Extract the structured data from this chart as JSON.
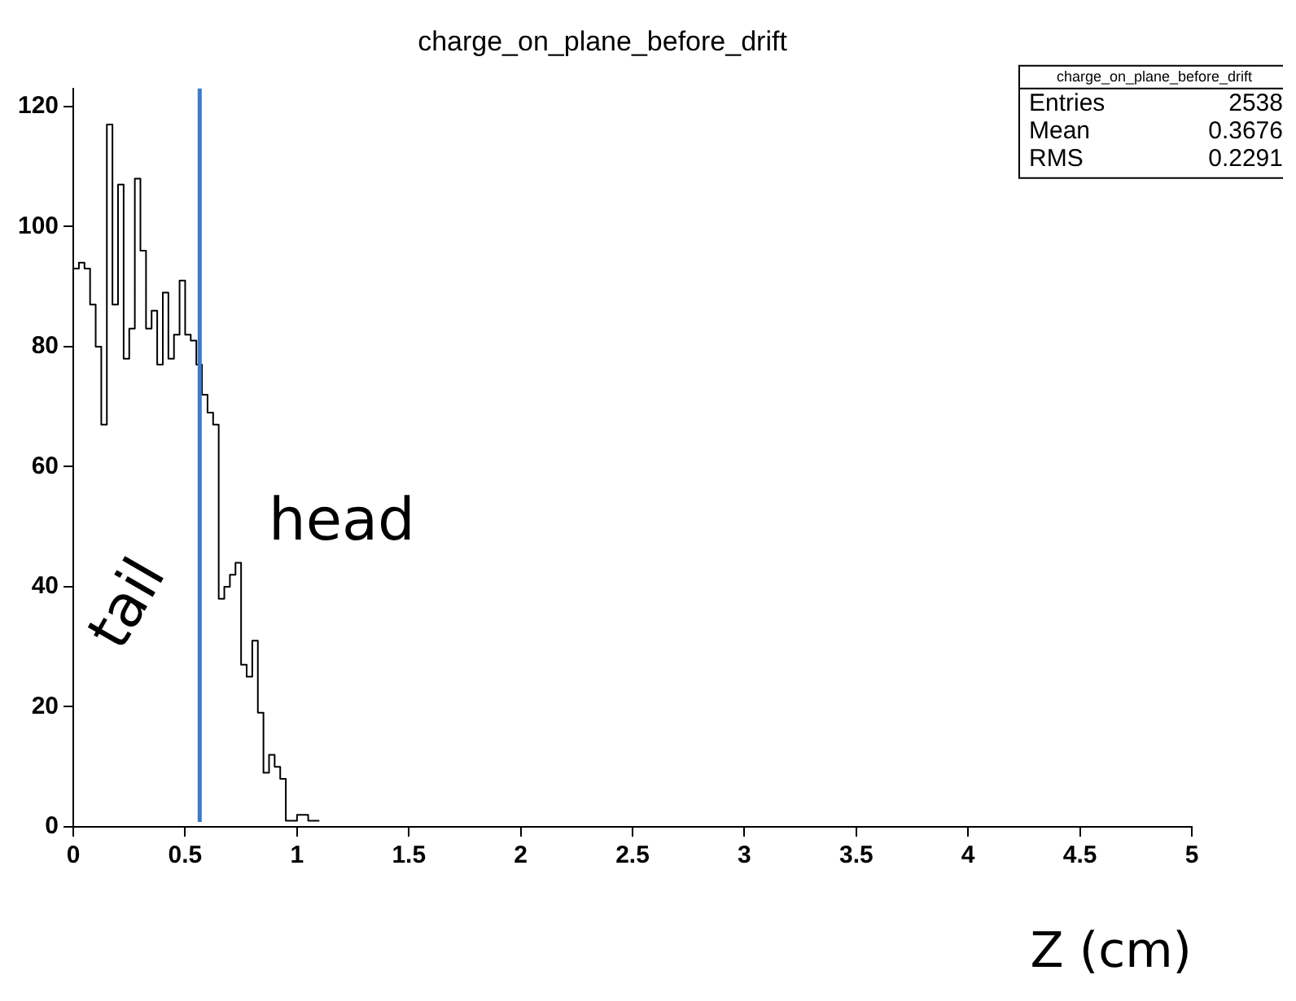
{
  "chart_data": {
    "type": "histogram",
    "title": "charge_on_plane_before_drift",
    "xlabel": "Z (cm)",
    "bins": [
      0,
      0.025,
      0.05,
      0.075,
      0.1,
      0.125,
      0.15,
      0.175,
      0.2,
      0.225,
      0.25,
      0.275,
      0.3,
      0.325,
      0.35,
      0.375,
      0.4,
      0.425,
      0.45,
      0.475,
      0.5,
      0.525,
      0.55,
      0.575,
      0.6,
      0.625,
      0.65,
      0.675,
      0.7,
      0.725,
      0.75,
      0.775,
      0.8,
      0.825,
      0.85,
      0.875,
      0.9,
      0.925,
      0.95,
      0.975,
      1,
      1.025,
      1.05,
      1.075,
      1.1
    ],
    "values": [
      93,
      94,
      93,
      87,
      80,
      67,
      117,
      87,
      107,
      78,
      83,
      108,
      96,
      83,
      86,
      77,
      89,
      78,
      82,
      91,
      82,
      81,
      77,
      72,
      69,
      67,
      38,
      40,
      42,
      44,
      27,
      25,
      31,
      19,
      9,
      12,
      10,
      8,
      1,
      1,
      2,
      2,
      1,
      1
    ],
    "color": "#000000",
    "xlim": [
      0,
      5
    ],
    "xticks": [
      0,
      0.5,
      1,
      1.5,
      2,
      2.5,
      3,
      3.5,
      4,
      4.5,
      5
    ],
    "ylim": [
      0,
      123
    ],
    "yticks": [
      0,
      20,
      40,
      60,
      80,
      100,
      120
    ],
    "grid": false,
    "legend": false,
    "ref_lines": [
      {
        "axis": "x",
        "value": 0.565,
        "color": "#3b7bc8"
      }
    ],
    "annotations": [
      "head",
      "tail",
      "charge_on_plane_before_drift",
      "Entries 2538",
      "Mean 0.3676",
      "RMS 0.2291"
    ]
  }
}
